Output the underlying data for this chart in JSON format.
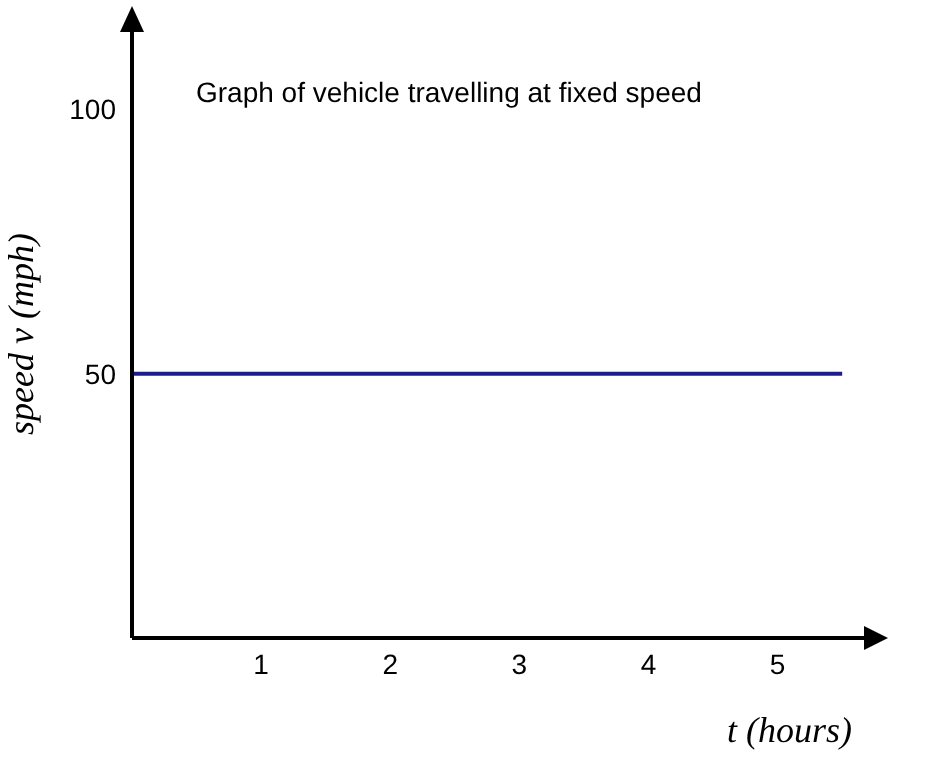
{
  "chart_data": {
    "type": "line",
    "title": "Graph of vehicle travelling at fixed speed",
    "xlabel": "t (hours)",
    "ylabel": "speed v (mph)",
    "x": [
      0,
      5.5
    ],
    "series": [
      {
        "color": "#1c1c8c",
        "values": [
          50,
          50
        ]
      }
    ],
    "xlim": [
      0,
      5.7
    ],
    "xticks": [
      1,
      2,
      3,
      4,
      5
    ],
    "ylim": [
      0,
      115
    ],
    "yticks": [
      50,
      100
    ],
    "marker": "none",
    "line_style": "solid"
  }
}
